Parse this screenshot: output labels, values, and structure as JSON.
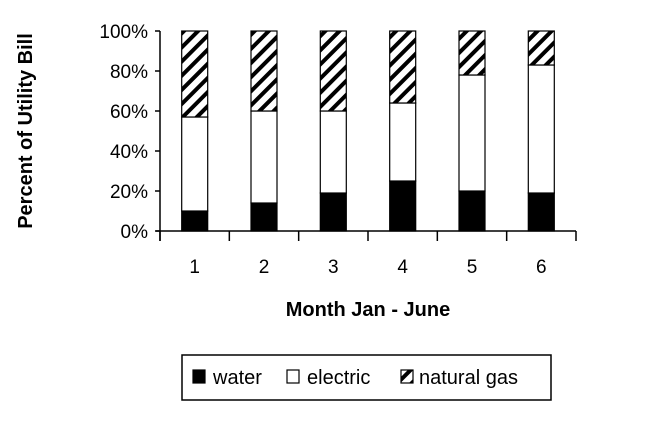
{
  "chart_data": {
    "type": "bar",
    "stacked": true,
    "percent": true,
    "categories": [
      "1",
      "2",
      "3",
      "4",
      "5",
      "6"
    ],
    "series": [
      {
        "name": "water",
        "values": [
          10,
          14,
          19,
          25,
          20,
          19
        ],
        "fill": "#000000"
      },
      {
        "name": "electric",
        "values": [
          47,
          46,
          41,
          39,
          58,
          64
        ],
        "fill": "#ffffff"
      },
      {
        "name": "natural gas",
        "values": [
          43,
          40,
          40,
          36,
          22,
          17
        ],
        "fill": "hatch"
      }
    ],
    "xlabel": "Month Jan - June",
    "ylabel": "Percent of Utility Bill",
    "ylim": [
      0,
      100
    ],
    "yticks": [
      "0%",
      "20%",
      "40%",
      "60%",
      "80%",
      "100%"
    ],
    "grid": false,
    "legend_position": "bottom"
  }
}
